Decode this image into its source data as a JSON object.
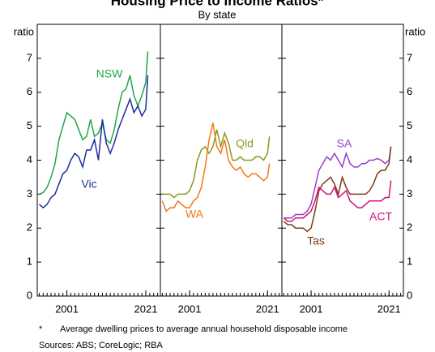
{
  "title": "Housing Price to Income Ratios*",
  "subtitle": "By state",
  "notes": [
    "*",
    "Average dwelling prices to average annual household disposable income",
    "Sources: ABS; CoreLogic; RBA"
  ],
  "chart_data": [
    {
      "type": "line",
      "ylabel": "ratio",
      "x": [
        1994,
        1995,
        1996,
        1997,
        1998,
        1999,
        2000,
        2001,
        2002,
        2003,
        2004,
        2005,
        2006,
        2007,
        2008,
        2009,
        2010,
        2011,
        2012,
        2013,
        2014,
        2015,
        2016,
        2017,
        2018,
        2019,
        2020,
        2021,
        2021.5
      ],
      "series": [
        {
          "name": "NSW",
          "color": "#22a64a",
          "values": [
            3.0,
            3.05,
            3.2,
            3.5,
            3.9,
            4.6,
            5.0,
            5.4,
            5.3,
            5.2,
            4.9,
            4.6,
            4.7,
            5.2,
            4.7,
            4.8,
            5.1,
            4.6,
            4.5,
            4.9,
            5.5,
            6.0,
            6.1,
            6.5,
            5.9,
            5.6,
            5.9,
            6.3,
            7.2
          ]
        },
        {
          "name": "Vic",
          "color": "#1f2d9c",
          "values": [
            2.7,
            2.6,
            2.7,
            2.9,
            3.0,
            3.3,
            3.6,
            3.7,
            4.0,
            4.2,
            4.1,
            3.8,
            4.3,
            4.3,
            4.6,
            4.0,
            5.2,
            4.5,
            4.2,
            4.5,
            4.9,
            5.2,
            5.5,
            5.8,
            5.4,
            5.6,
            5.3,
            5.5,
            6.5
          ]
        }
      ],
      "xlim": [
        1993.5,
        2024.7
      ],
      "xticks": [
        2001,
        2021
      ],
      "xminorticks": [
        1994,
        1995,
        1996,
        1997,
        1998,
        1999,
        2000,
        2001,
        2002,
        2003,
        2004,
        2005,
        2006,
        2007,
        2008,
        2009,
        2010,
        2011,
        2012,
        2013,
        2014,
        2015,
        2016,
        2017,
        2018,
        2019,
        2020,
        2021,
        2022,
        2023,
        2024
      ],
      "ylim": [
        0,
        8
      ],
      "yticks": [
        0,
        1,
        2,
        3,
        4,
        5,
        6,
        7
      ]
    },
    {
      "type": "line",
      "x": [
        1994,
        1995,
        1996,
        1997,
        1998,
        1999,
        2000,
        2001,
        2002,
        2003,
        2004,
        2005,
        2006,
        2007,
        2008,
        2009,
        2010,
        2011,
        2012,
        2013,
        2014,
        2015,
        2016,
        2017,
        2018,
        2019,
        2020,
        2021,
        2021.5
      ],
      "series": [
        {
          "name": "Qld",
          "color": "#8a9a1b",
          "values": [
            3.0,
            3.0,
            3.0,
            2.9,
            3.0,
            3.0,
            3.0,
            3.1,
            3.4,
            4.0,
            4.3,
            4.4,
            4.2,
            4.4,
            4.9,
            4.4,
            4.8,
            4.5,
            4.0,
            4.0,
            4.1,
            4.0,
            4.0,
            4.0,
            4.1,
            4.1,
            4.0,
            4.2,
            4.7
          ]
        },
        {
          "name": "WA",
          "color": "#f07818",
          "values": [
            2.8,
            2.5,
            2.6,
            2.6,
            2.8,
            2.7,
            2.6,
            2.6,
            2.8,
            2.9,
            3.2,
            3.8,
            4.6,
            5.1,
            4.4,
            4.2,
            4.6,
            4.0,
            3.8,
            3.7,
            3.8,
            3.6,
            3.5,
            3.6,
            3.6,
            3.5,
            3.4,
            3.5,
            3.9
          ]
        }
      ],
      "xlim": [
        1993.5,
        2024.7
      ],
      "xticks": [
        2001,
        2021
      ],
      "xminorticks": [
        1994,
        1995,
        1996,
        1997,
        1998,
        1999,
        2000,
        2001,
        2002,
        2003,
        2004,
        2005,
        2006,
        2007,
        2008,
        2009,
        2010,
        2011,
        2012,
        2013,
        2014,
        2015,
        2016,
        2017,
        2018,
        2019,
        2020,
        2021,
        2022,
        2023,
        2024
      ],
      "ylim": [
        0,
        8
      ],
      "yticks": [
        0,
        1,
        2,
        3,
        4,
        5,
        6,
        7
      ]
    },
    {
      "type": "line",
      "ylabel": "ratio",
      "x": [
        1994,
        1995,
        1996,
        1997,
        1998,
        1999,
        2000,
        2001,
        2002,
        2003,
        2004,
        2005,
        2006,
        2007,
        2008,
        2009,
        2010,
        2011,
        2012,
        2013,
        2014,
        2015,
        2016,
        2017,
        2018,
        2019,
        2020,
        2021,
        2021.5
      ],
      "series": [
        {
          "name": "SA",
          "color": "#9a3fc8",
          "values": [
            2.3,
            2.3,
            2.3,
            2.4,
            2.4,
            2.4,
            2.5,
            2.7,
            3.2,
            3.7,
            3.9,
            4.1,
            4.0,
            4.2,
            4.0,
            3.8,
            4.2,
            3.9,
            3.8,
            3.8,
            3.9,
            3.9,
            4.0,
            4.0,
            4.05,
            4.0,
            3.9,
            4.0,
            4.4
          ]
        },
        {
          "name": "Tas",
          "color": "#7a3b16",
          "values": [
            2.2,
            2.1,
            2.1,
            2.0,
            2.0,
            2.0,
            1.9,
            2.0,
            2.5,
            3.1,
            3.3,
            3.4,
            3.5,
            3.3,
            3.0,
            3.5,
            3.2,
            3.0,
            3.0,
            3.0,
            3.0,
            3.0,
            3.1,
            3.3,
            3.6,
            3.7,
            3.7,
            3.9,
            4.4
          ]
        },
        {
          "name": "ACT",
          "color": "#d4127a",
          "values": [
            2.3,
            2.2,
            2.2,
            2.3,
            2.3,
            2.3,
            2.4,
            2.5,
            2.8,
            3.2,
            3.1,
            3.0,
            3.0,
            3.2,
            2.9,
            3.0,
            3.1,
            2.8,
            2.7,
            2.6,
            2.6,
            2.7,
            2.8,
            2.8,
            2.8,
            2.8,
            2.9,
            2.9,
            3.4
          ]
        }
      ],
      "xlim": [
        1993.5,
        2024.7
      ],
      "xticks": [
        2001,
        2021
      ],
      "xminorticks": [
        1994,
        1995,
        1996,
        1997,
        1998,
        1999,
        2000,
        2001,
        2002,
        2003,
        2004,
        2005,
        2006,
        2007,
        2008,
        2009,
        2010,
        2011,
        2012,
        2013,
        2014,
        2015,
        2016,
        2017,
        2018,
        2019,
        2020,
        2021,
        2022,
        2023,
        2024
      ],
      "ylim": [
        0,
        8
      ],
      "yticks": [
        0,
        1,
        2,
        3,
        4,
        5,
        6,
        7
      ]
    }
  ]
}
